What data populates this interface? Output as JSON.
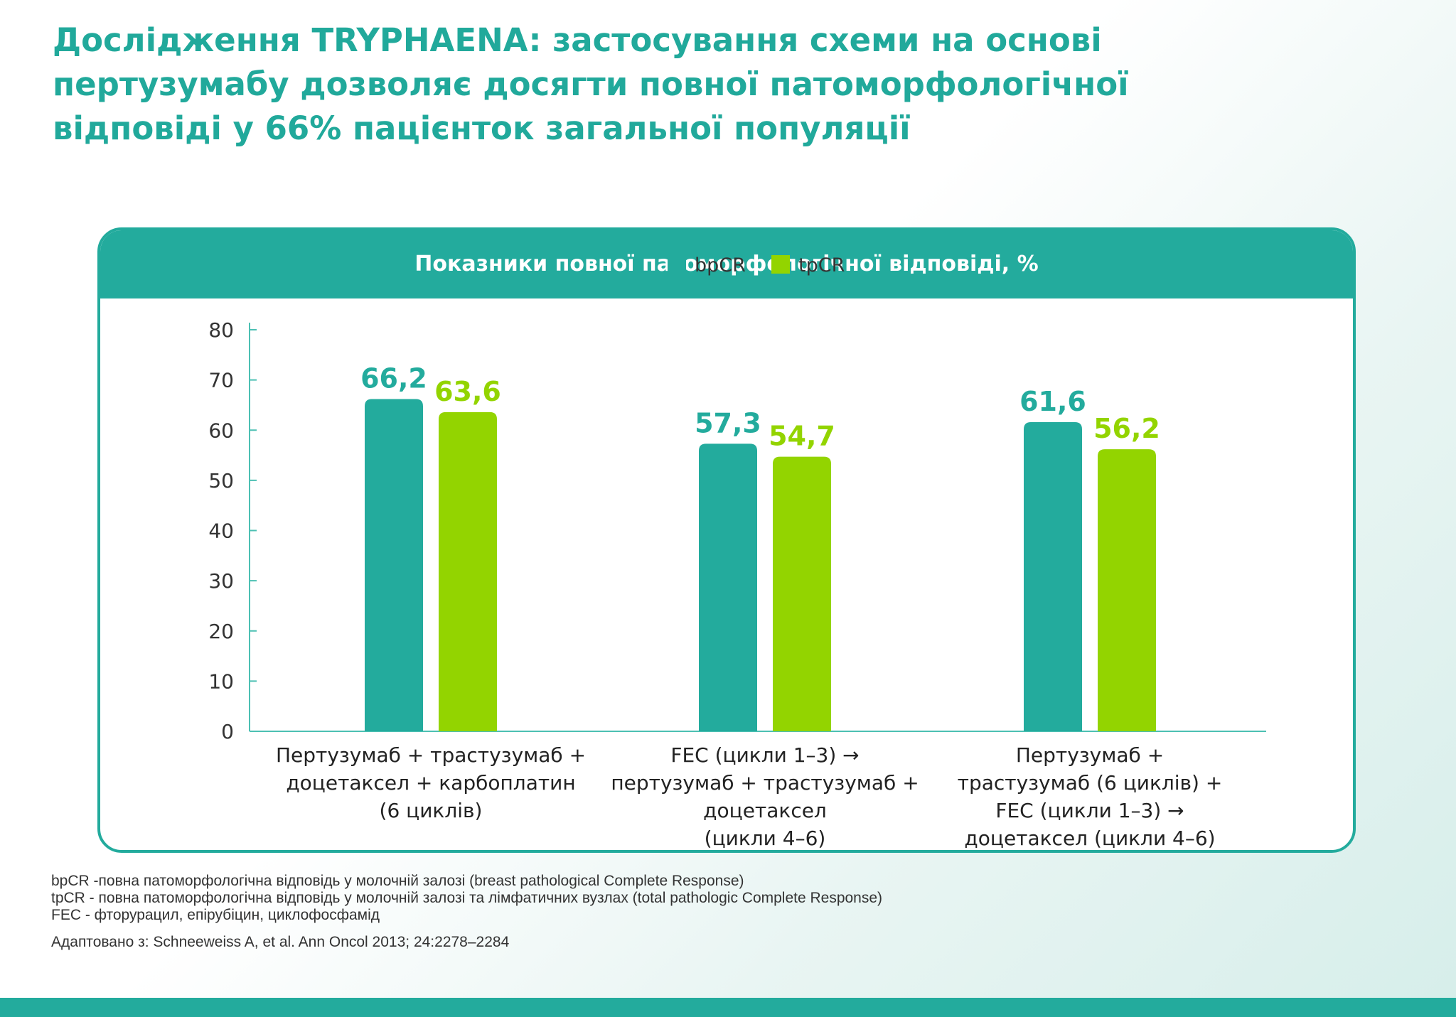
{
  "title_lines": [
    "Дослідження TRYPHAENA: застосування схеми на основі",
    "пертузумабу дозволяє досягти повної патоморфологічної",
    "відповіді у 66% пацієнток загальної популяції"
  ],
  "colors": {
    "accent": "#23ab9d",
    "bpcr": "#23ab9d",
    "tpcr": "#93d400",
    "title": "#21a99b"
  },
  "chart_data": {
    "type": "bar",
    "title": "Показники повної патоморфологічної відповіді, %",
    "ylim": [
      0,
      80
    ],
    "yticks": [
      "0",
      "10",
      "20",
      "30",
      "40",
      "50",
      "60",
      "70",
      "80"
    ],
    "legend_position": "top-center",
    "categories": [
      [
        "Пертузумаб + трастузумаб +",
        "доцетаксел + карбоплатин",
        "(6 циклів)"
      ],
      [
        "FEC (цикли 1–3) →",
        "пертузумаб + трастузумаб +",
        "доцетаксел",
        "(цикли 4–6)"
      ],
      [
        "Пертузумаб +",
        "трастузумаб (6 циклів) +",
        "FEC (цикли 1–3) →",
        "доцетаксел (цикли 4–6)"
      ]
    ],
    "series": [
      {
        "name": "bpCR",
        "values": [
          66.2,
          57.3,
          61.6
        ],
        "labels": [
          "66,2",
          "57,3",
          "61,6"
        ]
      },
      {
        "name": "tpCR",
        "values": [
          63.6,
          54.7,
          56.2
        ],
        "labels": [
          "63,6",
          "54,7",
          "56,2"
        ]
      }
    ]
  },
  "footnotes": [
    "bpCR -повна патоморфологічна відповідь у  молочній залозі (breast pathological Complete Response)",
    "tpCR - повна патоморфологічна відповідь у молочній залозі та лімфатичних вузлах (total pathologic Complete Response)",
    "FEC - фторурацил, епірубіцин, циклофосфамід"
  ],
  "source": "Адаптовано з: Schneeweiss A, et al. Ann Oncol 2013; 24:2278–2284"
}
